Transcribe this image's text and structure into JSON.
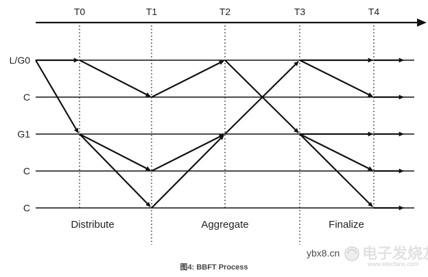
{
  "diagram": {
    "times": [
      "T0",
      "T1",
      "T2",
      "T3",
      "T4"
    ],
    "rows": [
      "L/G0",
      "C",
      "G1",
      "C",
      "C"
    ],
    "phases": [
      "Distribute",
      "Aggregate",
      "Finalize"
    ],
    "caption": "图4: BBFT Process"
  },
  "watermark": {
    "site": "ybx8.cn",
    "brand": "电子发烧友",
    "url": "www.elecfans.com"
  },
  "colors": {
    "line": "#111111",
    "dotted": "#333333",
    "caption": "#444444"
  }
}
